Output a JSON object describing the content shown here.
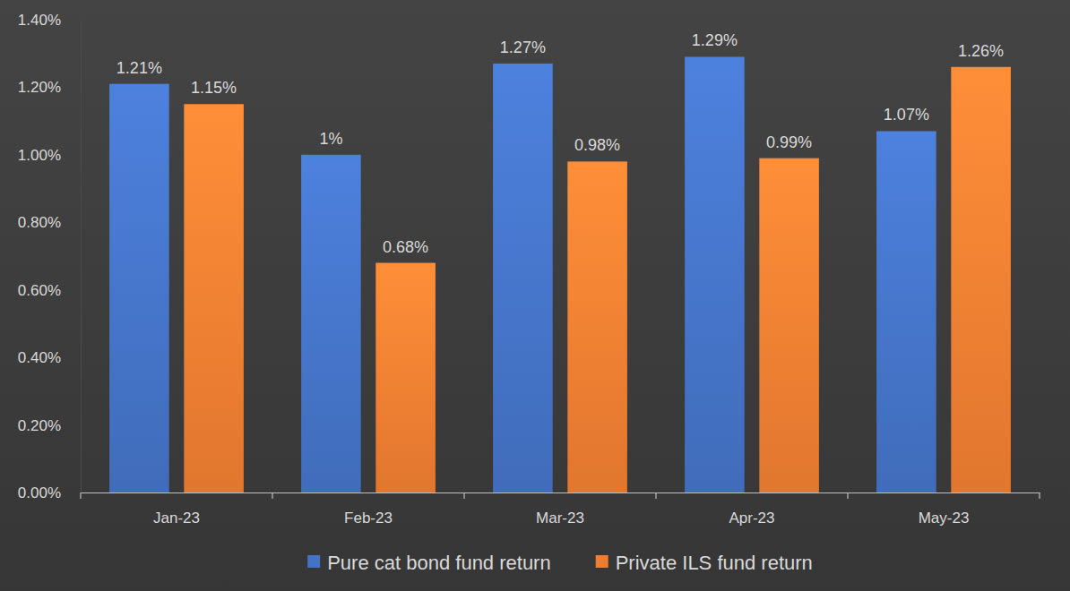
{
  "chart_data": {
    "type": "bar",
    "categories": [
      "Jan-23",
      "Feb-23",
      "Mar-23",
      "Apr-23",
      "May-23"
    ],
    "series": [
      {
        "name": "Pure cat bond fund return",
        "color": "#4472c4",
        "values": [
          1.21,
          1.0,
          1.27,
          1.29,
          1.07
        ],
        "value_labels": [
          "1.21%",
          "1%",
          "1.27%",
          "1.29%",
          "1.07%"
        ]
      },
      {
        "name": "Private ILS fund return",
        "color": "#ed7d31",
        "values": [
          1.15,
          0.68,
          0.98,
          0.99,
          1.26
        ],
        "value_labels": [
          "1.15%",
          "0.68%",
          "0.98%",
          "0.99%",
          "1.26%"
        ]
      }
    ],
    "ylim": [
      0,
      1.4
    ],
    "yticks": [
      {
        "value": 0,
        "label": "0.00%"
      },
      {
        "value": 0.2,
        "label": "0.20%"
      },
      {
        "value": 0.4,
        "label": "0.40%"
      },
      {
        "value": 0.6,
        "label": "0.60%"
      },
      {
        "value": 0.8,
        "label": "0.80%"
      },
      {
        "value": 1.0,
        "label": "1.00%"
      },
      {
        "value": 1.2,
        "label": "1.20%"
      },
      {
        "value": 1.4,
        "label": "1.40%"
      }
    ],
    "grid": false,
    "legend": "bottom",
    "data_labels": true
  }
}
